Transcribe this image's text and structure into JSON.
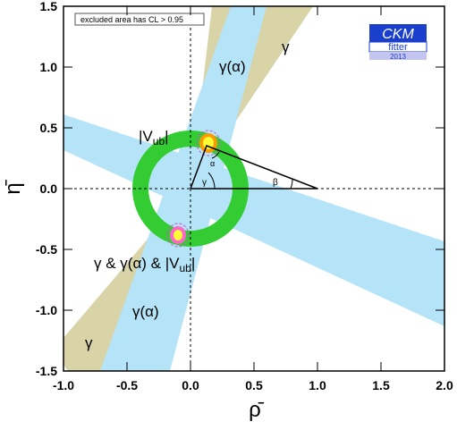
{
  "chart_data": {
    "type": "ckm_constraints",
    "xlabel": "ρ̄",
    "ylabel": "η̄",
    "xlim": [
      -1,
      2
    ],
    "ylim": [
      -1.5,
      1.5
    ],
    "xticks": [
      {
        "value": -1,
        "label": "-1.0"
      },
      {
        "value": -0.5,
        "label": "-0.5"
      },
      {
        "value": 0,
        "label": "0.0"
      },
      {
        "value": 0.5,
        "label": "0.5"
      },
      {
        "value": 1,
        "label": "1.0"
      },
      {
        "value": 1.5,
        "label": "1.5"
      },
      {
        "value": 2,
        "label": "2.0"
      }
    ],
    "yticks": [
      {
        "value": -1.5,
        "label": "-1.5"
      },
      {
        "value": -1,
        "label": "-1.0"
      },
      {
        "value": -0.5,
        "label": "-0.5"
      },
      {
        "value": 0,
        "label": "0.0"
      },
      {
        "value": 0.5,
        "label": "0.5"
      },
      {
        "value": 1,
        "label": "1.0"
      },
      {
        "value": 1.5,
        "label": "1.5"
      }
    ],
    "note": "excluded area has CL > 0.95",
    "logo": {
      "title": "CKM",
      "subtitle": "fitter",
      "year": "2013"
    },
    "annotations": [
      {
        "text": "γ(α)"
      },
      {
        "text": "γ"
      },
      {
        "text": "|V",
        "subscript": "ub",
        "suffix": "|"
      },
      {
        "text": "γ & γ(α) & |V",
        "subscript": "ub",
        "suffix": "|"
      },
      {
        "text": "γ(α)"
      },
      {
        "text": "γ"
      }
    ],
    "triangle_angles": [
      "α",
      "β",
      "γ"
    ]
  }
}
